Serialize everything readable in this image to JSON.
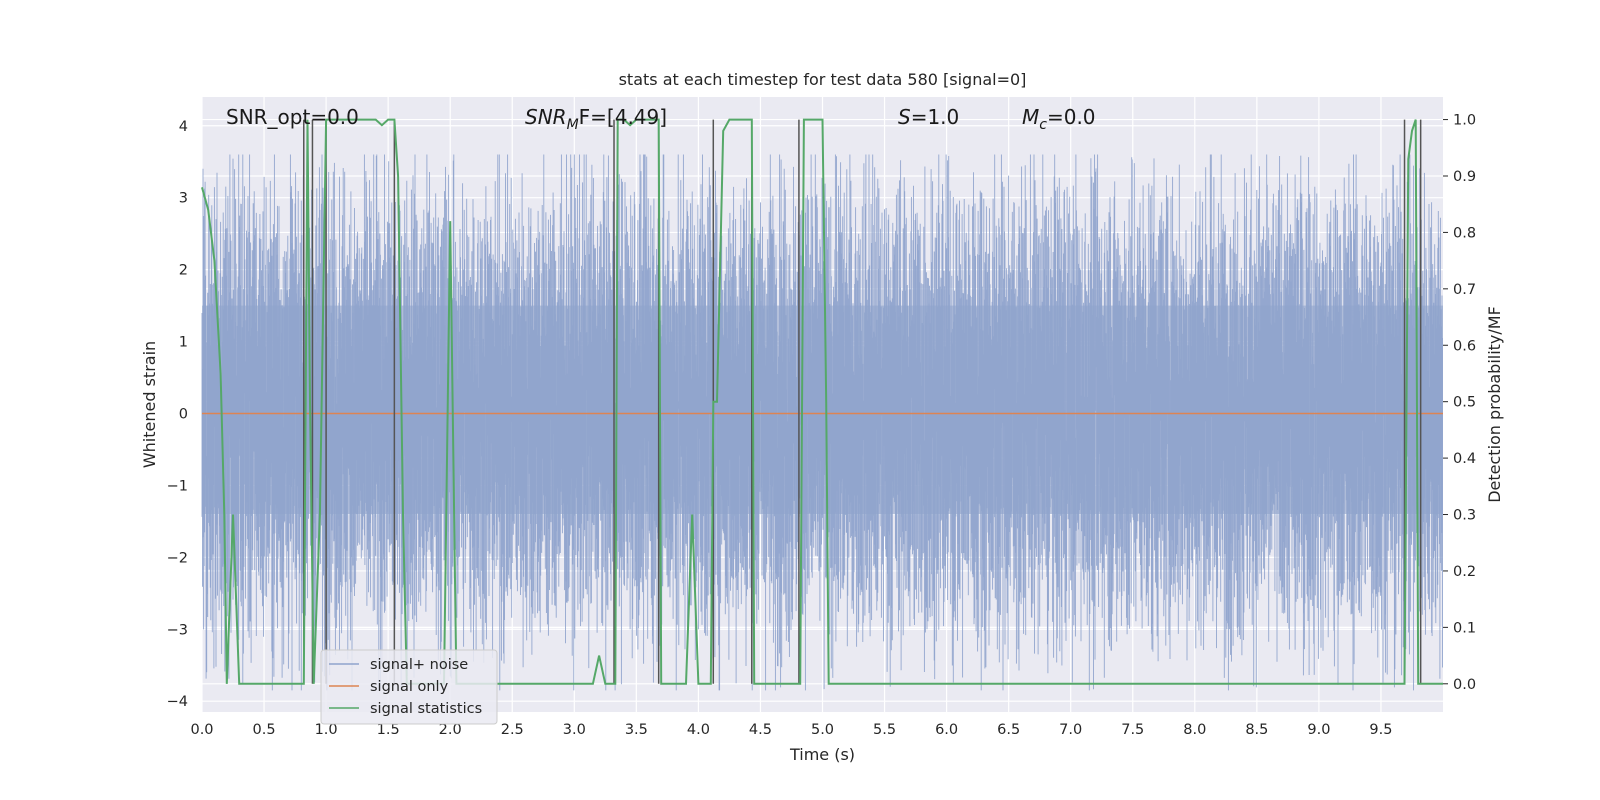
{
  "chart_data": {
    "type": "line",
    "title": "stats at each timestep for test data 580 [signal=0]",
    "xlabel": "Time (s)",
    "ylabel_left": "Whitened strain",
    "ylabel_right": "Detection probability/MF",
    "xlim": [
      0,
      10
    ],
    "ylim_left": [
      -4.15,
      4.4
    ],
    "ylim_right": [
      -0.05,
      1.04
    ],
    "x_ticks": [
      "0.0",
      "0.5",
      "1.0",
      "1.5",
      "2.0",
      "2.5",
      "3.0",
      "3.5",
      "4.0",
      "4.5",
      "5.0",
      "5.5",
      "6.0",
      "6.5",
      "7.0",
      "7.5",
      "8.0",
      "8.5",
      "9.0",
      "9.5"
    ],
    "y_ticks_left": [
      "−4",
      "−3",
      "−2",
      "−1",
      "0",
      "1",
      "2",
      "3",
      "4"
    ],
    "y_ticks_right": [
      "0.0",
      "0.1",
      "0.2",
      "0.3",
      "0.4",
      "0.5",
      "0.6",
      "0.7",
      "0.8",
      "0.9",
      "1.0"
    ],
    "grid": true,
    "legend_position": "lower-left",
    "annotations": {
      "snr_opt": "SNR_opt=0.0",
      "snr_mf_sym": "SNR",
      "snr_mf_sub": "M",
      "snr_mf_rest": "F=[4.49]",
      "s_sym": "S",
      "s_rest": "=1.0",
      "mc_sym": "M",
      "mc_sub": "c",
      "mc_rest": "=0.0"
    },
    "series": [
      {
        "name": "signal+ noise",
        "axis": "left",
        "color": "#8fa3cc",
        "description_values": "stationary whitened noise, approx amplitude between -3.8 and 3.6"
      },
      {
        "name": "signal only",
        "axis": "left",
        "color": "#dd8452",
        "x": [
          0,
          10
        ],
        "y": [
          0,
          0
        ]
      },
      {
        "name": "signal statistics",
        "axis": "right",
        "color": "#55a868",
        "x": [
          0.0,
          0.05,
          0.1,
          0.15,
          0.18,
          0.2,
          0.25,
          0.3,
          0.35,
          0.4,
          0.5,
          0.6,
          0.7,
          0.8,
          0.82,
          0.85,
          0.87,
          0.9,
          0.95,
          1.0,
          1.05,
          1.1,
          1.15,
          1.2,
          1.3,
          1.4,
          1.45,
          1.5,
          1.55,
          1.58,
          1.62,
          1.65,
          1.7,
          1.8,
          1.9,
          1.95,
          2.0,
          2.05,
          2.1,
          2.2,
          2.5,
          2.8,
          3.0,
          3.1,
          3.15,
          3.2,
          3.25,
          3.3,
          3.33,
          3.35,
          3.4,
          3.45,
          3.5,
          3.6,
          3.68,
          3.7,
          3.75,
          3.8,
          3.85,
          3.9,
          3.95,
          4.0,
          4.05,
          4.1,
          4.12,
          4.15,
          4.2,
          4.25,
          4.3,
          4.4,
          4.43,
          4.45,
          4.5,
          4.55,
          4.6,
          4.65,
          4.7,
          4.75,
          4.8,
          4.82,
          4.85,
          4.9,
          4.95,
          5.0,
          5.03,
          5.05,
          5.1,
          5.5,
          6.0,
          6.5,
          7.0,
          7.5,
          8.0,
          8.5,
          9.0,
          9.5,
          9.69,
          9.72,
          9.75,
          9.78,
          9.8,
          9.82,
          9.85,
          9.9,
          10.0
        ],
        "y": [
          0.88,
          0.84,
          0.75,
          0.55,
          0.3,
          0.0,
          0.3,
          0.0,
          0.0,
          0.0,
          0.0,
          0.0,
          0.0,
          0.0,
          0.0,
          1.0,
          0.5,
          0.0,
          0.3,
          1.0,
          1.0,
          1.0,
          1.0,
          1.0,
          1.0,
          1.0,
          0.99,
          1.0,
          1.0,
          0.9,
          0.3,
          0.0,
          0.0,
          0.0,
          0.0,
          0.0,
          0.82,
          0.0,
          0.0,
          0.0,
          0.0,
          0.0,
          0.0,
          0.0,
          0.0,
          0.05,
          0.0,
          0.0,
          0.0,
          1.0,
          1.0,
          0.99,
          1.0,
          1.0,
          1.0,
          0.0,
          0.0,
          0.0,
          0.0,
          0.0,
          0.3,
          0.0,
          0.0,
          0.0,
          0.5,
          0.5,
          0.98,
          1.0,
          1.0,
          1.0,
          1.0,
          0.0,
          0.0,
          0.0,
          0.0,
          0.0,
          0.0,
          0.0,
          0.0,
          0.0,
          1.0,
          1.0,
          1.0,
          1.0,
          0.5,
          0.0,
          0.0,
          0.0,
          0.0,
          0.0,
          0.0,
          0.0,
          0.0,
          0.0,
          0.0,
          0.0,
          0.0,
          0.93,
          0.98,
          1.0,
          0.0,
          0.0,
          0.0,
          0.0,
          0.0
        ]
      }
    ],
    "vertical_lines_x": [
      0.82,
      0.89,
      1.0,
      1.55,
      3.32,
      3.68,
      4.12,
      4.43,
      4.81,
      9.69,
      9.82
    ]
  }
}
